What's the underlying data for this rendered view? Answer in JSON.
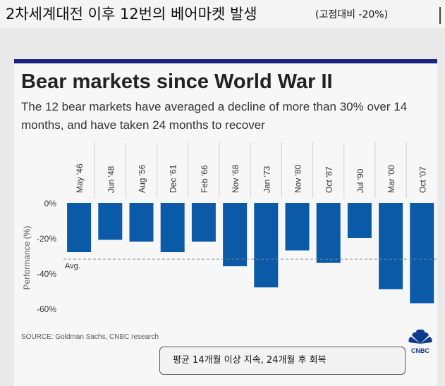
{
  "video_title": "2차세계대전 이후 12번의 베어마켓 발생",
  "video_title_sub": "(고점대비 -20%)",
  "caption": "평균 14개월 이상 지속, 24개월 후 회복",
  "brand_colors": {
    "bar": "#0a5aa8",
    "stripe": "#1a237e",
    "logo": "#0d3c8c"
  },
  "icons": {
    "logo": "cnbc-peacock-icon"
  },
  "source": "SOURCE: Goldman Sachs, CNBC research",
  "logo_text": "CNBC",
  "chart_data": {
    "type": "bar",
    "title": "Bear markets since World War II",
    "subtitle": "The 12 bear markets have averaged a decline of more than 30% over 14 months, and have taken 24 months to recover",
    "ylabel": "Performance (%)",
    "xlabel": "",
    "categories": [
      "May '46",
      "Jun '48",
      "Aug '56",
      "Dec '61",
      "Feb '66",
      "Nov '68",
      "Jan '73",
      "Nov '80",
      "Oct '87",
      "Jul '90",
      "Mar '00",
      "Oct '07"
    ],
    "values": [
      -28,
      -21,
      -22,
      -28,
      -22,
      -36,
      -48,
      -27,
      -34,
      -20,
      -49,
      -57
    ],
    "yticks": [
      0,
      -20,
      -40,
      -60
    ],
    "ytick_labels": [
      "0%",
      "-20%",
      "-40%",
      "-60%"
    ],
    "ylim": [
      -64,
      0
    ],
    "average": {
      "label": "Avg.",
      "value": -32
    },
    "grid": false
  }
}
